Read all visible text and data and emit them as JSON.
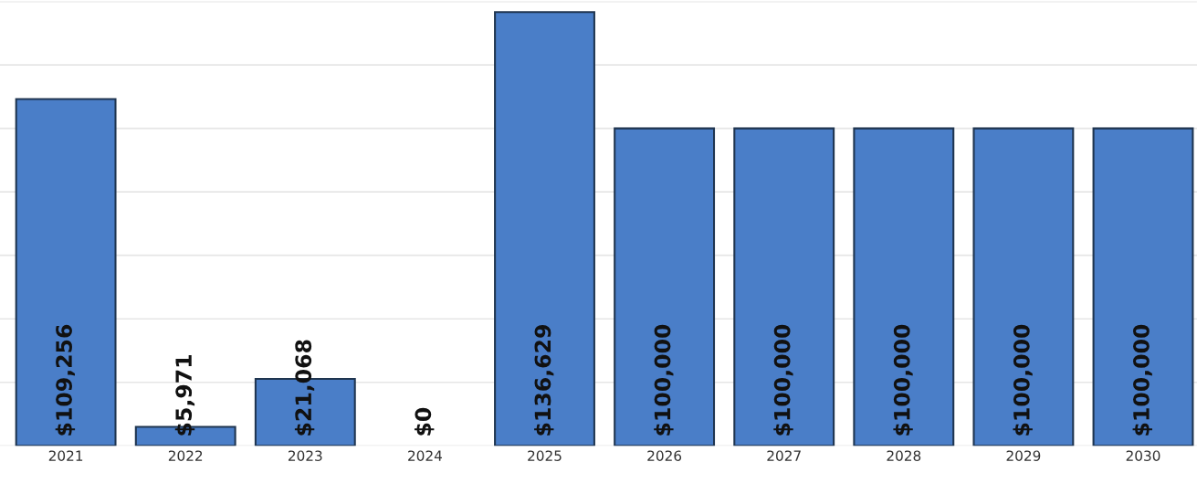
{
  "chart_data": {
    "type": "bar",
    "categories": [
      "2021",
      "2022",
      "2023",
      "2024",
      "2025",
      "2026",
      "2027",
      "2028",
      "2029",
      "2030"
    ],
    "values": [
      109256,
      5971,
      21068,
      0,
      136629,
      100000,
      100000,
      100000,
      100000,
      100000
    ],
    "value_labels": [
      "$109,256",
      "$5,971",
      "$21,068",
      "$0",
      "$136,629",
      "$100,000",
      "$100,000",
      "$100,000",
      "$100,000",
      "$100,000"
    ],
    "color": "#4a7ec8",
    "ylim": [
      0,
      140000
    ],
    "yticks": [
      {
        "value": 0,
        "label": null
      },
      {
        "value": 20000,
        "label": null
      },
      {
        "value": 40000,
        "label": null
      },
      {
        "value": 60000,
        "label": null
      },
      {
        "value": 80000,
        "label": null
      },
      {
        "value": 100000,
        "label": null
      },
      {
        "value": 120000,
        "label": null
      },
      {
        "value": 140000,
        "label": null
      }
    ],
    "tick_labels": "x",
    "grid": "y"
  }
}
